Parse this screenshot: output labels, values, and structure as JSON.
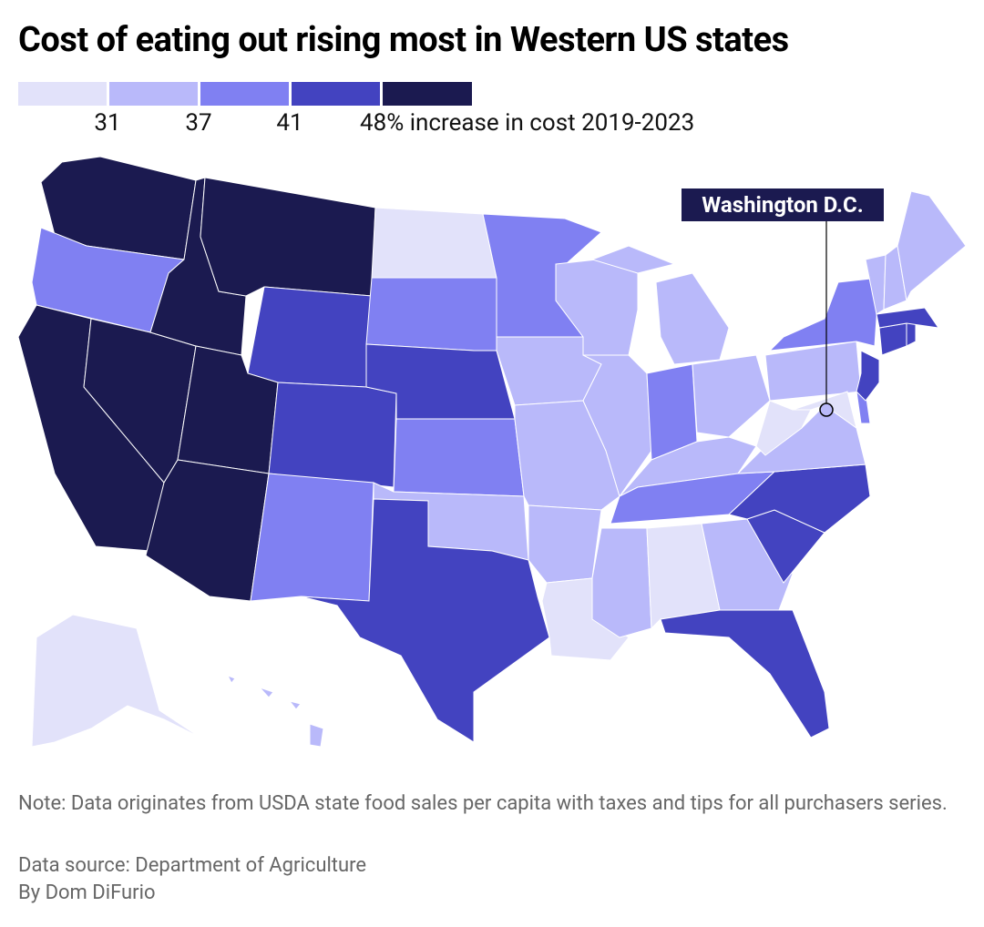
{
  "title": "Cost of eating out rising most in Western US states",
  "legend": {
    "colors": [
      "#e2e2fa",
      "#b9b9fa",
      "#8080f2",
      "#4343c0",
      "#1b1a50"
    ],
    "ticks": [
      31,
      37,
      41,
      {
        "value": 48,
        "label": "48% increase in cost 2019-2023"
      }
    ]
  },
  "regions": [
    4,
    2,
    4,
    4,
    4,
    4,
    3,
    4,
    4,
    3,
    2,
    0,
    2,
    3,
    2,
    1,
    3,
    2,
    1,
    1,
    1,
    0,
    1,
    1,
    1,
    2,
    1,
    1,
    2,
    1,
    0,
    1,
    3,
    3,
    3,
    1,
    0,
    1,
    2,
    0,
    2,
    3,
    3,
    3,
    3,
    1,
    1,
    1,
    0,
    1,
    1
  ],
  "annotation": "Washington D.C.",
  "note": "Note: Data originates from USDA state food sales per capita with taxes and tips for all purchasers series.",
  "source": "Data source: Department of Agriculture",
  "byline": "By Dom DiFurio"
}
